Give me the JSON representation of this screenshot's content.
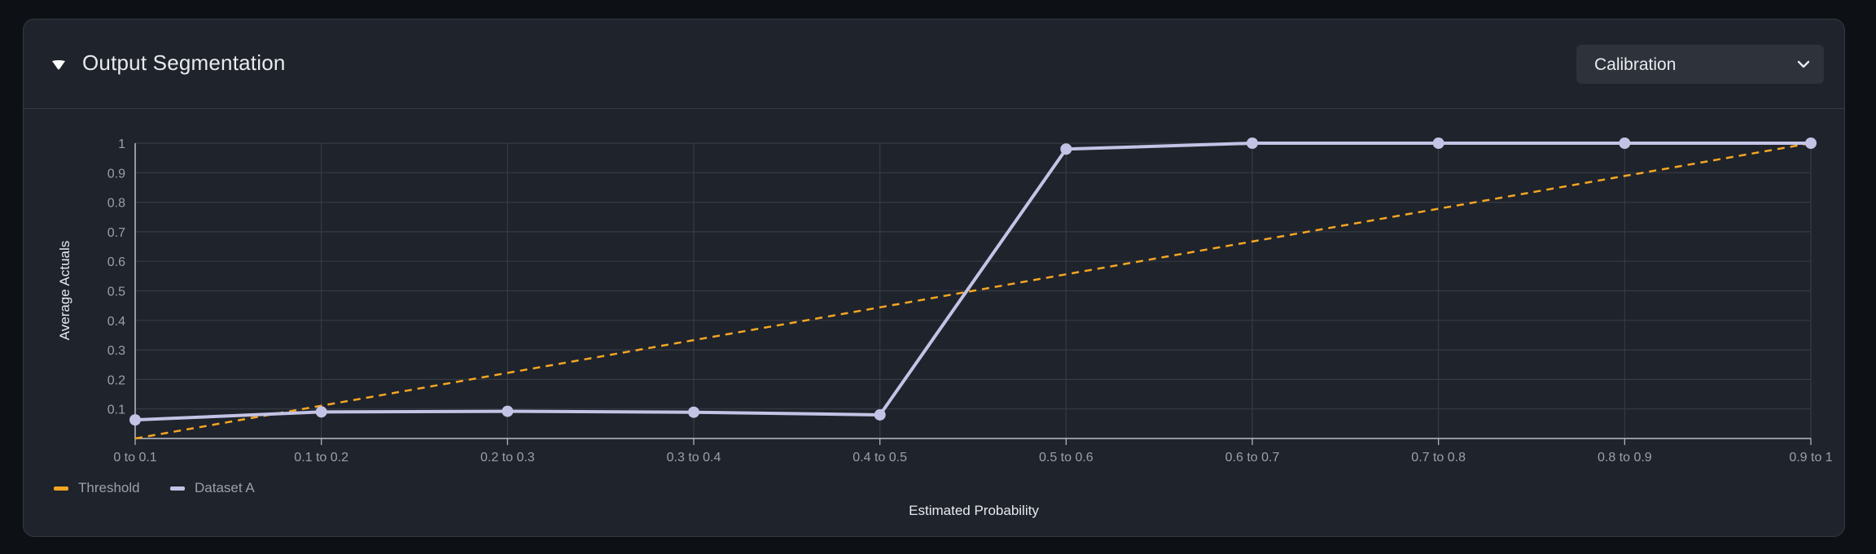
{
  "panel": {
    "title": "Output Segmentation"
  },
  "dropdown": {
    "selected": "Calibration"
  },
  "icons": {
    "collapse": "caret-down-icon",
    "dropdown": "chevron-down-icon"
  },
  "colors": {
    "threshold": "#f5a623",
    "dataset": "#c3c3e6",
    "background": "#1f232b",
    "grid": "#363b45"
  },
  "chart_data": {
    "type": "line",
    "xlabel": "Estimated Probability",
    "ylabel": "Average Actuals",
    "categories": [
      "0 to 0.1",
      "0.1 to 0.2",
      "0.2 to 0.3",
      "0.3 to 0.4",
      "0.4 to 0.5",
      "0.5 to 0.6",
      "0.6 to 0.7",
      "0.7 to 0.8",
      "0.8 to 0.9",
      "0.9 to 1"
    ],
    "y_ticks": [
      "0.1",
      "0.2",
      "0.3",
      "0.4",
      "0.5",
      "0.6",
      "0.7",
      "0.8",
      "0.9",
      "1"
    ],
    "ylim": [
      0,
      1
    ],
    "grid": true,
    "legend_position": "bottom-left",
    "series": [
      {
        "name": "Threshold",
        "style": "dashed",
        "values": [
          0,
          0.111,
          0.222,
          0.333,
          0.444,
          0.556,
          0.667,
          0.778,
          0.889,
          1
        ]
      },
      {
        "name": "Dataset A",
        "style": "solid-markers",
        "values": [
          0.063,
          0.09,
          0.092,
          0.089,
          0.08,
          0.98,
          1,
          1,
          1,
          1
        ]
      }
    ]
  }
}
